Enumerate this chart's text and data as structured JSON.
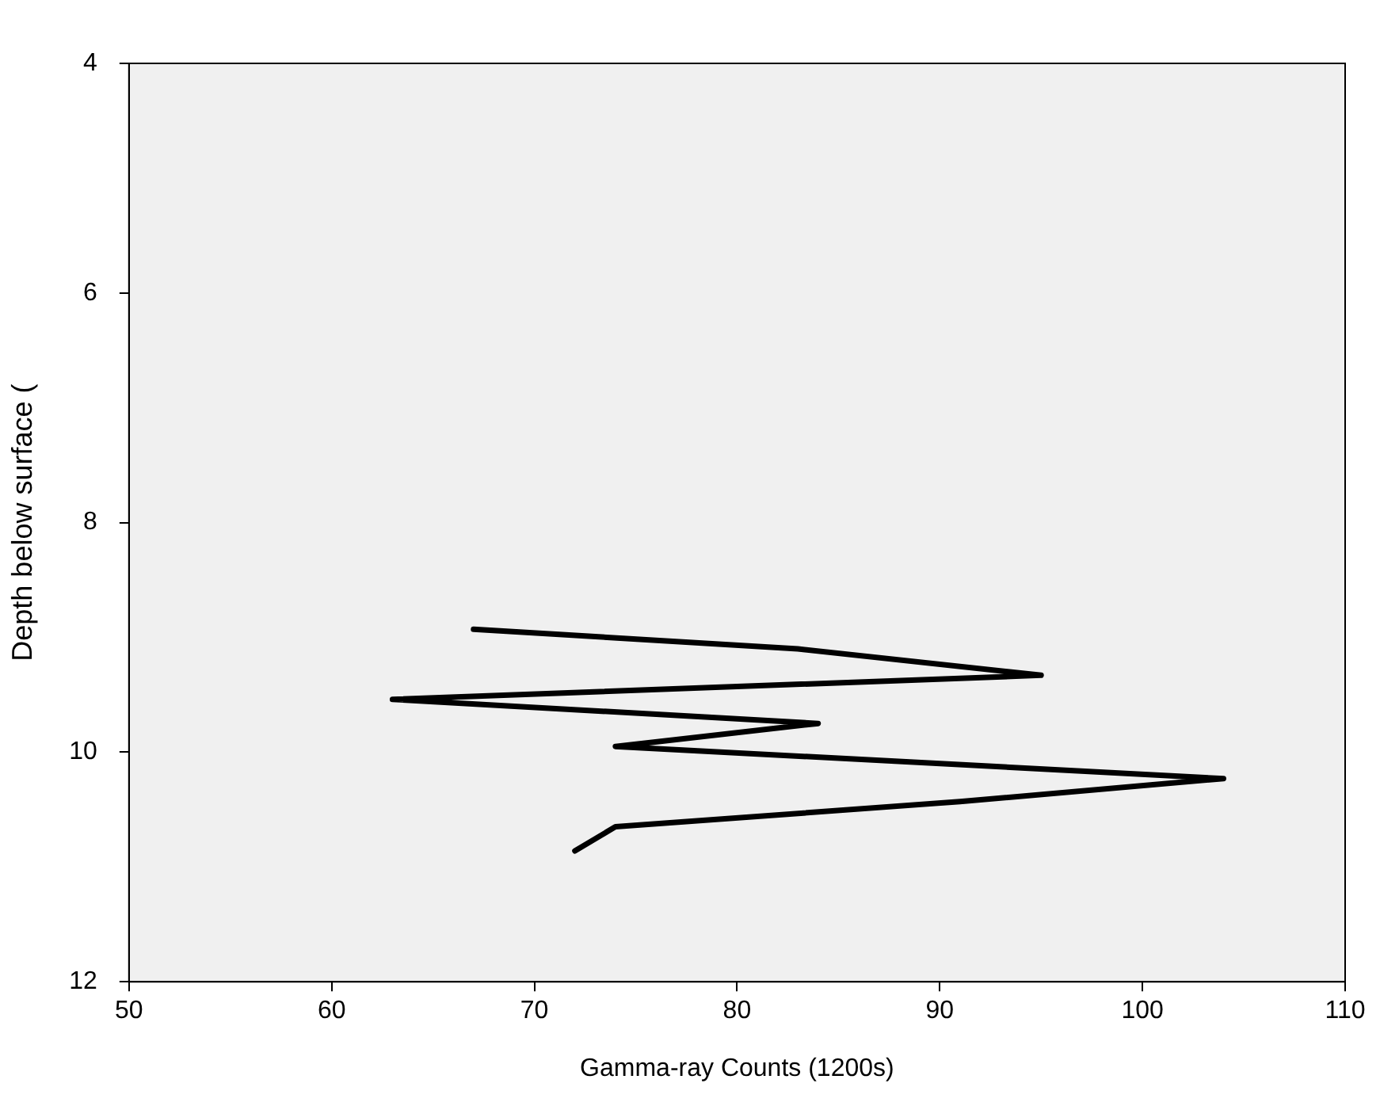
{
  "chart_data": {
    "type": "line",
    "xlabel": "Gamma-ray Counts (1200s)",
    "ylabel": "Depth below surface (",
    "x": [
      67,
      83,
      95,
      63,
      84,
      74,
      104,
      91,
      74,
      72
    ],
    "series": [
      {
        "color": "#000000",
        "values": [
          8.93,
          9.1,
          9.33,
          9.54,
          9.75,
          9.95,
          10.23,
          10.43,
          10.65,
          10.86
        ]
      }
    ],
    "xlim": [
      50,
      110
    ],
    "xticks": [
      50,
      60,
      70,
      80,
      90,
      100,
      110
    ],
    "ylim": [
      12,
      4
    ],
    "yticks": [
      4,
      6,
      8,
      10,
      12
    ],
    "grid": false,
    "legend": false,
    "marker": "none",
    "line_style": "solid"
  }
}
